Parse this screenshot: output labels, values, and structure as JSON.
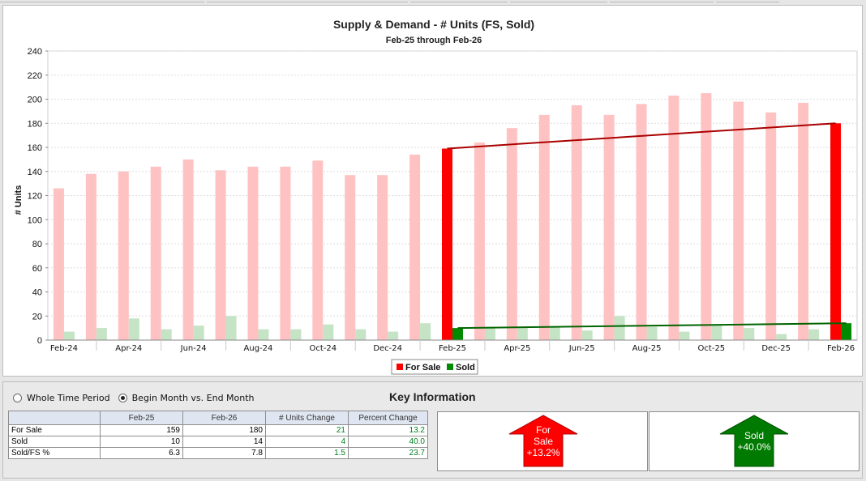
{
  "chart_data": {
    "type": "bar",
    "title": "Supply & Demand - # Units (FS, Sold)",
    "subtitle": "Feb-25 through Feb-26",
    "ylabel": "# Units",
    "ylim": [
      0,
      240
    ],
    "yticks": [
      "0",
      "20",
      "40",
      "60",
      "80",
      "100",
      "120",
      "140",
      "160",
      "180",
      "200",
      "220",
      "240"
    ],
    "categories": [
      "Feb-24",
      "Mar-24",
      "Apr-24",
      "May-24",
      "Jun-24",
      "Jul-24",
      "Aug-24",
      "Sep-24",
      "Oct-24",
      "Nov-24",
      "Dec-24",
      "Jan-25",
      "Feb-25",
      "Mar-25",
      "Apr-25",
      "May-25",
      "Jun-25",
      "Jul-25",
      "Aug-25",
      "Sep-25",
      "Oct-25",
      "Nov-25",
      "Dec-25",
      "Jan-26",
      "Feb-26"
    ],
    "xtick_labels": [
      "Feb-24",
      "Apr-24",
      "Jun-24",
      "Aug-24",
      "Oct-24",
      "Dec-24",
      "Feb-25",
      "Apr-25",
      "Jun-25",
      "Aug-25",
      "Oct-25",
      "Dec-25",
      "Feb-26"
    ],
    "series": [
      {
        "name": "For Sale",
        "color": "#ff0000",
        "faded_color": "#ffc2c2",
        "values": [
          126,
          138,
          140,
          144,
          150,
          141,
          144,
          144,
          149,
          137,
          137,
          154,
          159,
          164,
          176,
          187,
          195,
          187,
          196,
          203,
          205,
          198,
          189,
          197,
          180
        ]
      },
      {
        "name": "Sold",
        "color": "#008a00",
        "faded_color": "#c5e3c5",
        "values": [
          7,
          10,
          18,
          9,
          12,
          20,
          9,
          9,
          13,
          9,
          7,
          14,
          10,
          11,
          11,
          11,
          8,
          20,
          11,
          7,
          12,
          10,
          5,
          9,
          14
        ]
      }
    ],
    "highlight_categories": [
      "Feb-25",
      "Feb-26"
    ],
    "trend_lines": [
      {
        "series": "For Sale",
        "from": 159,
        "to": 180,
        "color": "#aa0000"
      },
      {
        "series": "Sold",
        "from": 10,
        "to": 14,
        "color": "#006400"
      }
    ],
    "grid": true,
    "legend": "bottom"
  },
  "controls": {
    "radio_whole": "Whole Time Period",
    "radio_begin_end": "Begin Month vs. End Month",
    "selected": "begin_end"
  },
  "key_info": {
    "title": "Key Information",
    "headers": [
      "",
      "Feb-25",
      "Feb-26",
      "# Units Change",
      "Percent Change"
    ],
    "rows": [
      [
        "For Sale",
        "159",
        "180",
        "21",
        "13.2"
      ],
      [
        "Sold",
        "10",
        "14",
        "4",
        "40.0"
      ],
      [
        "Sold/FS %",
        "6.3",
        "7.8",
        "1.5",
        "23.7"
      ]
    ]
  },
  "arrows": [
    {
      "label_lines": [
        "For",
        "Sale",
        "+13.2%"
      ],
      "color": "#ff0000",
      "text_color": "#ffffff"
    },
    {
      "label_lines": [
        "Sold",
        "+40.0%"
      ],
      "color": "#007a00",
      "text_color": "#ffffff"
    }
  ]
}
